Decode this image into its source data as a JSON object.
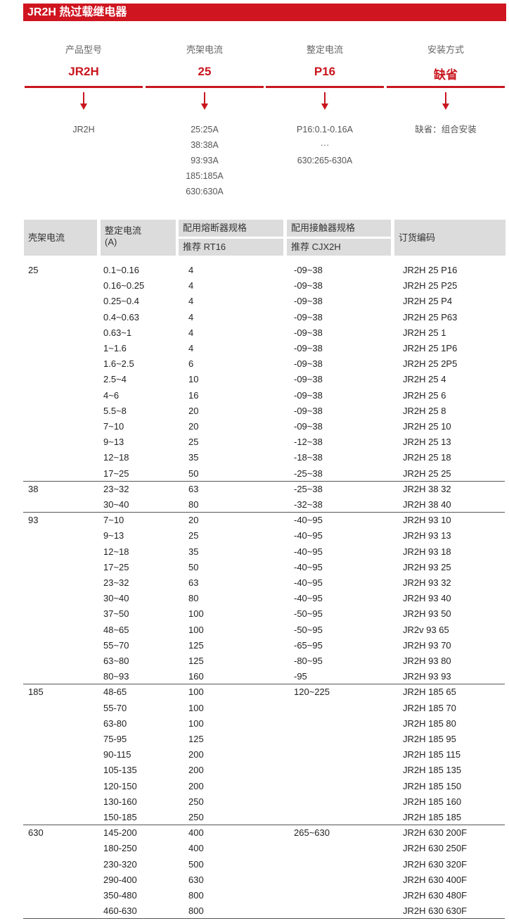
{
  "title": "JR2H 热过载继电器",
  "model_code": [
    {
      "label": "产品型号",
      "value": "JR2H",
      "options": [
        "JR2H"
      ]
    },
    {
      "label": "壳架电流",
      "value": "25",
      "options": [
        "25:25A",
        "38:38A",
        "93:93A",
        "185:185A",
        "630:630A"
      ]
    },
    {
      "label": "整定电流",
      "value": "P16",
      "options": [
        "P16:0.1-0.16A",
        "···",
        "630:265-630A"
      ]
    },
    {
      "label": "安装方式",
      "value": "缺省",
      "options": [
        "缺省：组合安装"
      ]
    }
  ],
  "table": {
    "headers": {
      "frame": "壳架电流",
      "setting": "整定电流",
      "setting_unit": "(A)",
      "fuse": "配用熔断器规格",
      "fuse_sub": "推荐 RT16",
      "contactor": "配用接触器规格",
      "contactor_sub": "推荐 CJX2H",
      "code": "订货编码"
    },
    "groups": [
      {
        "frame": "25",
        "rows": [
          [
            "0.1~0.16",
            "4",
            "-09~38",
            "JR2H 25 P16"
          ],
          [
            "0.16~0.25",
            "4",
            "-09~38",
            "JR2H 25 P25"
          ],
          [
            "0.25~0.4",
            "4",
            "-09~38",
            "JR2H 25 P4"
          ],
          [
            "0.4~0.63",
            "4",
            "-09~38",
            "JR2H 25 P63"
          ],
          [
            "0.63~1",
            "4",
            "-09~38",
            "JR2H 25 1"
          ],
          [
            "1~1.6",
            "4",
            "-09~38",
            "JR2H 25 1P6"
          ],
          [
            "1.6~2.5",
            "6",
            "-09~38",
            "JR2H 25 2P5"
          ],
          [
            "2.5~4",
            "10",
            "-09~38",
            "JR2H 25 4"
          ],
          [
            "4~6",
            "16",
            "-09~38",
            "JR2H 25 6"
          ],
          [
            "5.5~8",
            "20",
            "-09~38",
            "JR2H 25 8"
          ],
          [
            "7~10",
            "20",
            "-09~38",
            "JR2H 25 10"
          ],
          [
            "9~13",
            "25",
            "-12~38",
            "JR2H 25 13"
          ],
          [
            "12~18",
            "35",
            "-18~38",
            "JR2H 25 18"
          ],
          [
            "17~25",
            "50",
            "-25~38",
            "JR2H 25 25"
          ]
        ]
      },
      {
        "frame": "38",
        "rows": [
          [
            "23~32",
            "63",
            "-25~38",
            "JR2H 38 32"
          ],
          [
            "30~40",
            "80",
            "-32~38",
            "JR2H 38 40"
          ]
        ]
      },
      {
        "frame": "93",
        "rows": [
          [
            "7~10",
            "20",
            "-40~95",
            "JR2H 93 10"
          ],
          [
            "9~13",
            "25",
            "-40~95",
            "JR2H 93 13"
          ],
          [
            "12~18",
            "35",
            "-40~95",
            "JR2H 93 18"
          ],
          [
            "17~25",
            "50",
            "-40~95",
            "JR2H 93 25"
          ],
          [
            "23~32",
            "63",
            "-40~95",
            "JR2H 93 32"
          ],
          [
            "30~40",
            "80",
            "-40~95",
            "JR2H 93 40"
          ],
          [
            "37~50",
            "100",
            "-50~95",
            "JR2H 93 50"
          ],
          [
            "48~65",
            "100",
            "-50~95",
            "JR2v 93 65"
          ],
          [
            "55~70",
            "125",
            "-65~95",
            "JR2H 93 70"
          ],
          [
            "63~80",
            "125",
            "-80~95",
            "JR2H 93 80"
          ],
          [
            "80~93",
            "160",
            "-95",
            "JR2H 93 93"
          ]
        ]
      },
      {
        "frame": "185",
        "rows": [
          [
            "48-65",
            "100",
            "120~225",
            "JR2H 185 65"
          ],
          [
            "55-70",
            "100",
            "",
            "JR2H 185 70"
          ],
          [
            "63-80",
            "100",
            "",
            "JR2H 185 80"
          ],
          [
            "75-95",
            "125",
            "",
            "JR2H 185 95"
          ],
          [
            "90-115",
            "200",
            "",
            "JR2H 185 115"
          ],
          [
            "105-135",
            "200",
            "",
            "JR2H 185 135"
          ],
          [
            "120-150",
            "200",
            "",
            "JR2H 185 150"
          ],
          [
            "130-160",
            "250",
            "",
            "JR2H 185 160"
          ],
          [
            "150-185",
            "250",
            "",
            "JR2H 185 185"
          ]
        ]
      },
      {
        "frame": "630",
        "rows": [
          [
            "145-200",
            "400",
            "265~630",
            "JR2H 630 200F"
          ],
          [
            "180-250",
            "400",
            "",
            "JR2H 630 250F"
          ],
          [
            "230-320",
            "500",
            "",
            "JR2H 630 320F"
          ],
          [
            "290-400",
            "630",
            "",
            "JR2H 630 400F"
          ],
          [
            "350-480",
            "800",
            "",
            "JR2H 630 480F"
          ],
          [
            "460-630",
            "800",
            "",
            "JR2H 630 630F"
          ]
        ]
      }
    ]
  }
}
